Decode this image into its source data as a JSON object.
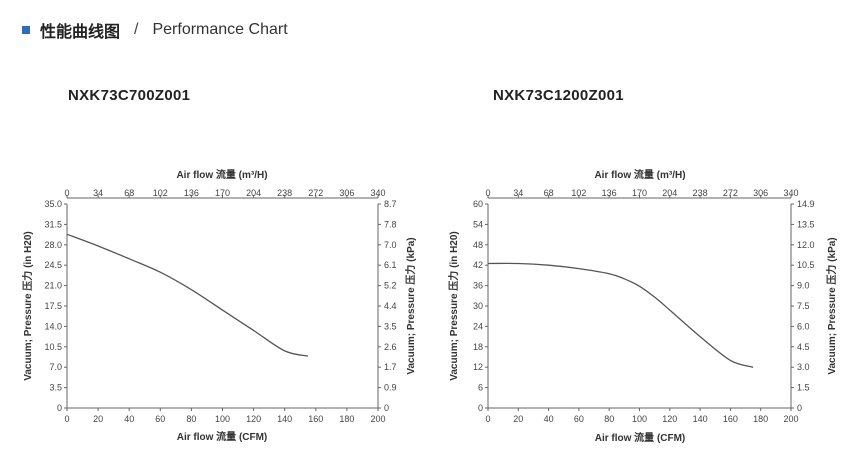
{
  "header": {
    "title_cn": "性能曲线图",
    "separator": "/",
    "title_en": "Performance Chart"
  },
  "colors": {
    "accent": "#2f6db5",
    "curve": "#555555",
    "axis": "#666666"
  },
  "chart_data": [
    {
      "type": "line",
      "title": "NXK73C700Z001",
      "xlabel": "Air flow 流量 (CFM)",
      "x2label": "Air flow 流量 (m³/H)",
      "ylabel": "Vacuum; Pressure 压力 (in H20)",
      "y2label": "Vacuum; Pressure 压力 (kPa)",
      "xlim": [
        0,
        200
      ],
      "ylim": [
        0,
        35
      ],
      "x_ticks": [
        "0",
        "20",
        "40",
        "60",
        "80",
        "100",
        "120",
        "140",
        "160",
        "180",
        "200"
      ],
      "x2_ticks": [
        "0",
        "34",
        "68",
        "102",
        "136",
        "170",
        "204",
        "238",
        "272",
        "306",
        "340"
      ],
      "y_ticks": [
        "0",
        "3.5",
        "7.0",
        "10.5",
        "14.0",
        "17.5",
        "21.0",
        "24.5",
        "28.0",
        "31.5",
        "35.0"
      ],
      "y2_ticks": [
        "0",
        "0.9",
        "1.7",
        "2.6",
        "3.5",
        "4.4",
        "5.2",
        "6.1",
        "7.0",
        "7.8",
        "8.7"
      ],
      "grid": false,
      "series": [
        {
          "x": [
            0,
            20,
            40,
            60,
            80,
            100,
            120,
            140,
            155
          ],
          "y": [
            29.8,
            27.8,
            25.6,
            23.3,
            20.3,
            16.8,
            13.3,
            9.8,
            8.9
          ]
        }
      ]
    },
    {
      "type": "line",
      "title": "NXK73C1200Z001",
      "xlabel": "Air flow 流量 (CFM)",
      "x2label": "Air flow 流量 (m³/H)",
      "ylabel": "Vacuum; Pressure 压力 (in H20)",
      "y2label": "Vacuum; Pressure 压力 (kPa)",
      "xlim": [
        0,
        200
      ],
      "ylim": [
        0,
        60
      ],
      "x_ticks": [
        "0",
        "20",
        "40",
        "60",
        "80",
        "100",
        "120",
        "140",
        "160",
        "180",
        "200"
      ],
      "x2_ticks": [
        "0",
        "34",
        "68",
        "102",
        "136",
        "170",
        "204",
        "238",
        "272",
        "306",
        "340"
      ],
      "y_ticks": [
        "0",
        "6",
        "12",
        "18",
        "24",
        "30",
        "36",
        "42",
        "48",
        "54",
        "60"
      ],
      "y2_ticks": [
        "0",
        "1.5",
        "3.0",
        "4.5",
        "6.0",
        "7.5",
        "9.0",
        "10.5",
        "12.0",
        "13.5",
        "14.9"
      ],
      "grid": false,
      "series": [
        {
          "x": [
            0,
            20,
            40,
            60,
            80,
            90,
            100,
            110,
            120,
            140,
            160,
            175
          ],
          "y": [
            42.5,
            42.5,
            42.0,
            41.0,
            39.5,
            38.0,
            35.8,
            32.6,
            28.8,
            21.0,
            14.0,
            12.0
          ]
        }
      ]
    }
  ]
}
